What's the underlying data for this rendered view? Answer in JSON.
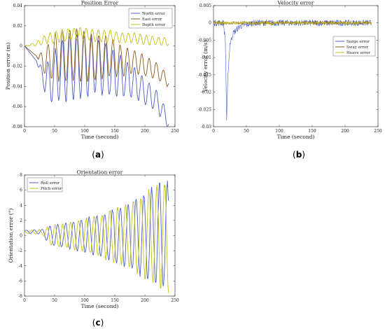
{
  "chart_data": [
    {
      "type": "line",
      "title": "Position Error",
      "xlabel": "Time (second)",
      "ylabel": "Position error (m)",
      "xlim": [
        0,
        250
      ],
      "ylim": [
        -0.08,
        0.04
      ],
      "xticks": [
        "0",
        "50",
        "100",
        "150",
        "200",
        "250"
      ],
      "yticks": [
        "0.04",
        "0.02",
        "0",
        "-0.02",
        "-0.04",
        "-0.06",
        "-0.08"
      ],
      "grid": false,
      "legend_position": "top-right",
      "caption_label": "a",
      "series": [
        {
          "name": "North error",
          "color": "#4b5fc8",
          "x": [
            0,
            20,
            30,
            40,
            50,
            60,
            80,
            100,
            120,
            140,
            160,
            180,
            200,
            220,
            240
          ],
          "y": [
            0,
            -0.015,
            -0.03,
            -0.035,
            -0.03,
            -0.025,
            -0.02,
            -0.02,
            -0.02,
            -0.025,
            -0.03,
            -0.035,
            -0.045,
            -0.055,
            -0.075
          ],
          "amp": [
            0,
            0,
            0.01,
            0.02,
            0.025,
            0.03,
            0.032,
            0.03,
            0.028,
            0.024,
            0.02,
            0.016,
            0.012,
            0.01,
            0.008
          ],
          "period": 12
        },
        {
          "name": "East error",
          "color": "#8c5a1e",
          "x": [
            0,
            20,
            30,
            40,
            50,
            60,
            80,
            100,
            120,
            140,
            160,
            180,
            200,
            220,
            240
          ],
          "y": [
            0,
            -0.01,
            -0.015,
            -0.015,
            -0.01,
            -0.01,
            -0.008,
            -0.01,
            -0.012,
            -0.01,
            -0.015,
            -0.015,
            -0.02,
            -0.025,
            -0.035
          ],
          "amp": [
            0,
            0,
            0.01,
            0.018,
            0.022,
            0.025,
            0.026,
            0.025,
            0.022,
            0.02,
            0.015,
            0.012,
            0.01,
            0.008,
            0.006
          ],
          "period": 12
        },
        {
          "name": "Depth error",
          "color": "#c4c21a",
          "x": [
            0,
            20,
            30,
            40,
            50,
            60,
            80,
            100,
            120,
            140,
            160,
            180,
            200,
            220,
            240
          ],
          "y": [
            0,
            0.002,
            0.005,
            0.008,
            0.008,
            0.01,
            0.012,
            0.012,
            0.01,
            0.01,
            0.008,
            0.008,
            0.006,
            0.005,
            0.004
          ],
          "amp": [
            0,
            0.002,
            0.004,
            0.005,
            0.006,
            0.006,
            0.006,
            0.006,
            0.006,
            0.006,
            0.005,
            0.005,
            0.005,
            0.004,
            0.004
          ],
          "period": 10
        }
      ]
    },
    {
      "type": "line",
      "title": "Velocity error",
      "xlabel": "Time (second)",
      "ylabel": "Velocity error (m/s)",
      "xlim": [
        0,
        250
      ],
      "ylim": [
        -0.03,
        0.005
      ],
      "xticks": [
        "0",
        "50",
        "100",
        "150",
        "200",
        "250"
      ],
      "yticks": [
        "0.005",
        "0",
        "-0.005",
        "-0.01",
        "-0.015",
        "-0.02",
        "-0.025",
        "-0.03"
      ],
      "grid": false,
      "legend_position": "right",
      "caption_label": "b",
      "series": [
        {
          "name": "Surge error",
          "color": "#4b5fc8",
          "x": [
            0,
            15,
            18,
            20,
            22,
            25,
            30,
            40,
            60,
            100,
            150,
            200,
            240
          ],
          "y": [
            0,
            0,
            -0.005,
            -0.028,
            -0.015,
            -0.006,
            -0.003,
            -0.001,
            0,
            0,
            0,
            0,
            0
          ],
          "noise": 0.0009
        },
        {
          "name": "Sway error",
          "color": "#8c5a1e",
          "x": [
            0,
            240
          ],
          "y": [
            0,
            0
          ],
          "noise": 0.0005
        },
        {
          "name": "Heave error",
          "color": "#c4c21a",
          "x": [
            0,
            240
          ],
          "y": [
            0,
            0
          ],
          "noise": 0.0004
        }
      ]
    },
    {
      "type": "line",
      "title": "Orientation error",
      "xlabel": "Time (second)",
      "ylabel": "Orientation error (°)",
      "xlim": [
        0,
        250
      ],
      "ylim": [
        -8,
        8
      ],
      "xticks": [
        "0",
        "50",
        "100",
        "150",
        "200",
        "250"
      ],
      "yticks": [
        "8",
        "6",
        "4",
        "2",
        "0",
        "-2",
        "-4",
        "-6",
        "-8"
      ],
      "grid": false,
      "legend_position": "top-left",
      "caption_label": "c",
      "series": [
        {
          "name": "Roll error",
          "color": "#4b5fc8",
          "x": [
            0,
            30,
            40,
            60,
            80,
            100,
            120,
            140,
            160,
            180,
            200,
            220,
            240
          ],
          "y": [
            0.5,
            0.5,
            0,
            0,
            0,
            0,
            0,
            0,
            0,
            0,
            0,
            0,
            0
          ],
          "amp": [
            0.2,
            0.3,
            1.2,
            1.5,
            1.8,
            2.2,
            2.6,
            3.2,
            3.8,
            4.5,
            5.5,
            6.5,
            7.2
          ],
          "period": 13
        },
        {
          "name": "Pitch error",
          "color": "#c4c21a",
          "x": [
            0,
            30,
            40,
            60,
            80,
            100,
            120,
            140,
            160,
            180,
            200,
            220,
            240
          ],
          "y": [
            0.5,
            0.5,
            0,
            0,
            0,
            0,
            0,
            0,
            0,
            0,
            0,
            0,
            0
          ],
          "amp": [
            0.2,
            0.3,
            1.2,
            1.5,
            1.8,
            2.2,
            2.6,
            3.2,
            3.8,
            4.5,
            5.5,
            6.5,
            7.2
          ],
          "period": 13,
          "phase": 2.2
        }
      ]
    }
  ]
}
